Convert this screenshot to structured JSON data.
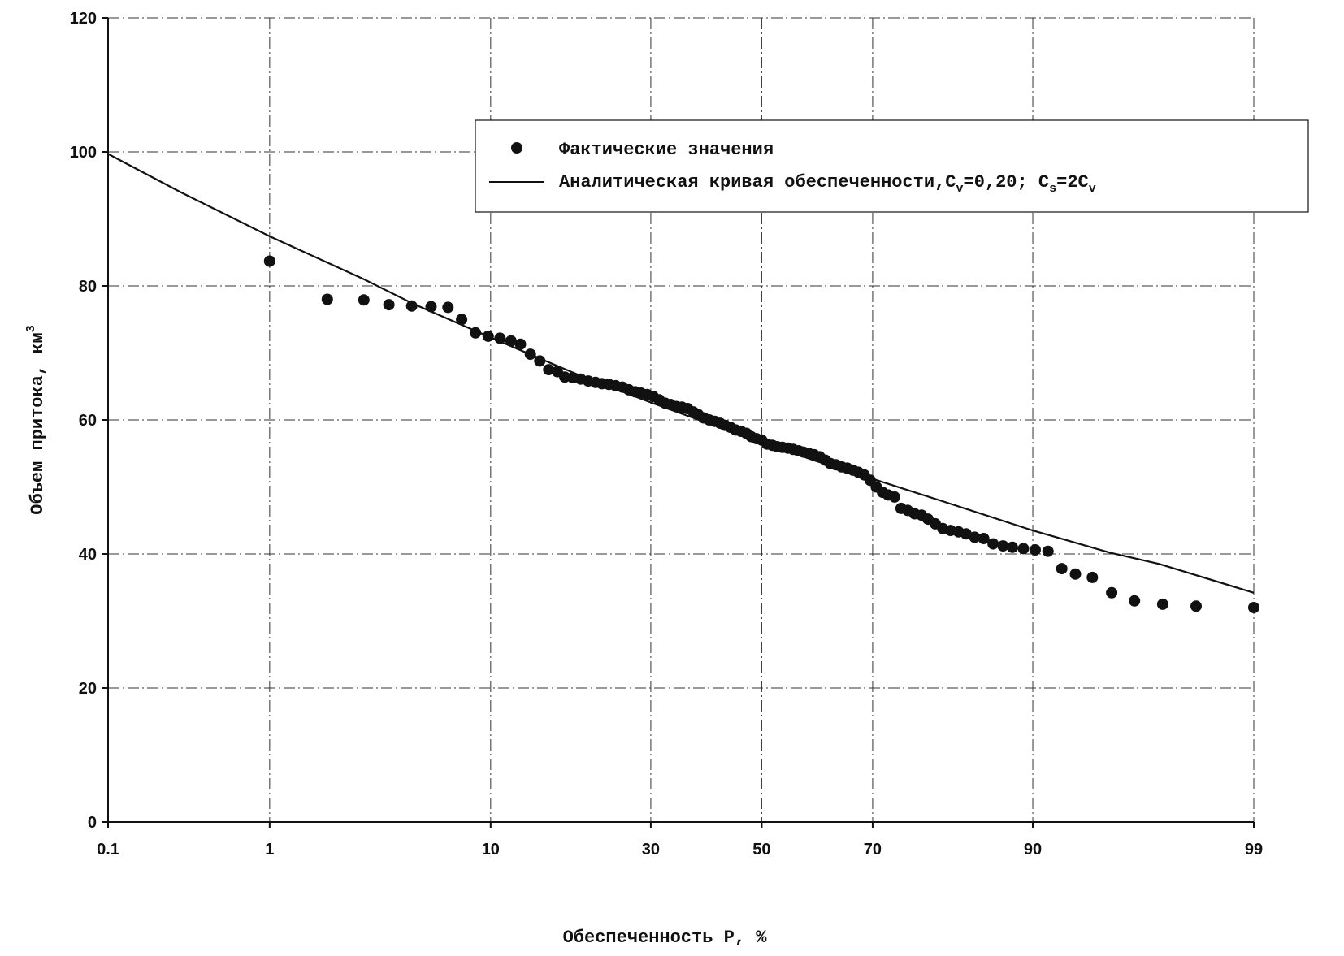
{
  "chart_data": {
    "type": "scatter",
    "x_scale": "probability",
    "xlabel": "Обеспеченность P, %",
    "ylabel": "Объем притока, км",
    "ylabel_sup": "3",
    "xlim": [
      0.1,
      99
    ],
    "ylim": [
      0,
      120
    ],
    "x_ticks": [
      0.1,
      1,
      10,
      30,
      50,
      70,
      90,
      99
    ],
    "x_tick_labels": [
      "0.1",
      "1",
      "10",
      "30",
      "50",
      "70",
      "90",
      "99"
    ],
    "y_ticks": [
      0,
      20,
      40,
      60,
      80,
      100,
      120
    ],
    "y_tick_labels": [
      "0",
      "20",
      "40",
      "60",
      "80",
      "100",
      "120"
    ],
    "grid": true,
    "legend_position": "top-right",
    "legend": {
      "points_label": "Фактические значения",
      "curve_label_main": "Аналитическая кривая обеспеченности,C",
      "curve_label_sub1": "v",
      "curve_label_mid": "=0,20; C",
      "curve_label_sub2": "s",
      "curve_label_end": "=2C",
      "curve_label_sub3": "v"
    },
    "series": [
      {
        "name": "Фактические значения",
        "kind": "points",
        "color": "#111111",
        "x": [
          1.0,
          2.0,
          3.0,
          3.9,
          4.9,
          5.9,
          6.9,
          7.8,
          8.8,
          9.8,
          10.8,
          11.8,
          12.7,
          13.7,
          14.7,
          15.7,
          16.7,
          17.6,
          18.6,
          19.6,
          20.6,
          21.6,
          22.5,
          23.5,
          24.5,
          25.5,
          26.5,
          27.5,
          28.4,
          29.4,
          30.4,
          31.4,
          32.4,
          33.3,
          34.3,
          35.3,
          36.3,
          37.3,
          38.2,
          39.2,
          40.2,
          41.2,
          42.2,
          43.1,
          44.1,
          45.1,
          46.1,
          47.1,
          48.0,
          49.0,
          50.0,
          51.0,
          52.0,
          52.9,
          53.9,
          54.9,
          55.9,
          56.9,
          57.8,
          58.8,
          59.8,
          60.8,
          61.8,
          62.7,
          63.7,
          64.7,
          65.7,
          66.7,
          67.6,
          68.6,
          69.6,
          70.6,
          71.6,
          72.5,
          73.5,
          74.5,
          75.5,
          76.5,
          77.5,
          78.4,
          79.4,
          80.4,
          81.4,
          82.4,
          83.3,
          84.3,
          85.3,
          86.3,
          87.3,
          88.2,
          89.2,
          90.2,
          91.2,
          92.2,
          93.1,
          94.1,
          95.1,
          96.1,
          97.1,
          98.0,
          99.0
        ],
        "y": [
          83.7,
          78.0,
          77.9,
          77.2,
          77.0,
          76.9,
          76.8,
          75.0,
          73.0,
          72.5,
          72.2,
          71.8,
          71.3,
          69.8,
          68.8,
          67.5,
          67.2,
          66.4,
          66.3,
          66.1,
          65.8,
          65.6,
          65.4,
          65.3,
          65.1,
          64.9,
          64.5,
          64.2,
          64.0,
          63.8,
          63.5,
          63.0,
          62.5,
          62.3,
          62.0,
          61.9,
          61.7,
          61.2,
          60.8,
          60.3,
          60.0,
          59.8,
          59.5,
          59.2,
          58.9,
          58.5,
          58.3,
          58.0,
          57.5,
          57.2,
          57.0,
          56.4,
          56.2,
          56.0,
          55.9,
          55.8,
          55.6,
          55.4,
          55.2,
          55.0,
          54.8,
          54.5,
          54.0,
          53.5,
          53.3,
          53.0,
          52.8,
          52.5,
          52.2,
          51.8,
          51.0,
          50.0,
          49.2,
          48.8,
          48.5,
          46.8,
          46.5,
          46.0,
          45.8,
          45.2,
          44.5,
          43.8,
          43.5,
          43.3,
          43.0,
          42.5,
          42.3,
          41.5,
          41.2,
          41.0,
          40.8,
          40.6,
          40.4,
          37.8,
          37.0,
          36.5,
          34.2,
          33.0,
          32.5,
          32.2,
          32.0
        ]
      },
      {
        "name": "Аналитическая кривая обеспеченности,Cv=0,20; Cs=2Cv",
        "kind": "line",
        "color": "#111111",
        "x": [
          0.1,
          0.3,
          1,
          3,
          5,
          10,
          20,
          30,
          40,
          50,
          60,
          70,
          80,
          90,
          95,
          97,
          99
        ],
        "y": [
          99.7,
          94.0,
          87.4,
          81.0,
          77.3,
          72.3,
          66.4,
          62.6,
          59.5,
          56.7,
          53.9,
          51.2,
          48.0,
          43.5,
          40.2,
          38.5,
          34.2
        ]
      }
    ]
  }
}
